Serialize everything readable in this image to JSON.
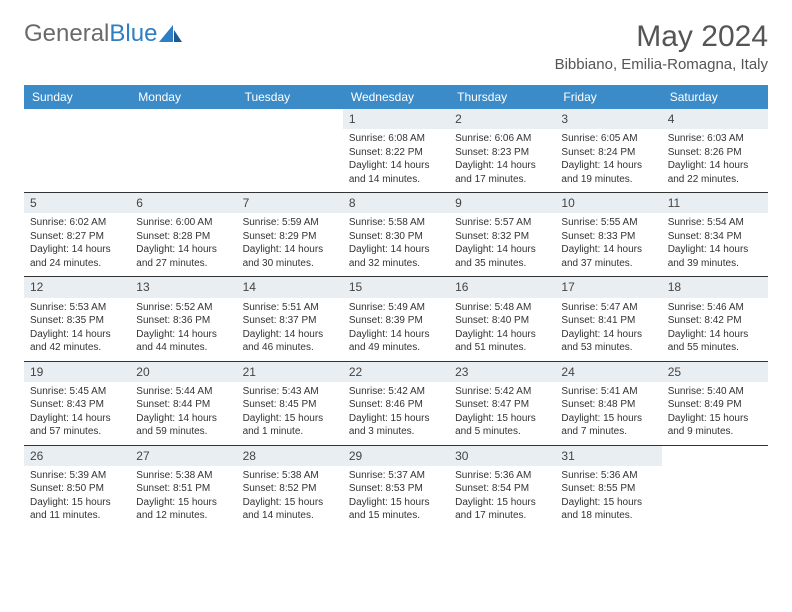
{
  "brand": {
    "general": "General",
    "blue": "Blue"
  },
  "title": "May 2024",
  "location": "Bibbiano, Emilia-Romagna, Italy",
  "colors": {
    "header_bg": "#3b8bc9",
    "daynum_bg": "#e9eef3",
    "text": "#333333",
    "divider": "#333333",
    "brand_gray": "#6a6a6a",
    "brand_blue": "#2d7ec4"
  },
  "calendar": {
    "columns": [
      "Sunday",
      "Monday",
      "Tuesday",
      "Wednesday",
      "Thursday",
      "Friday",
      "Saturday"
    ],
    "weeks": [
      [
        null,
        null,
        null,
        {
          "day": "1",
          "sunrise": "Sunrise: 6:08 AM",
          "sunset": "Sunset: 8:22 PM",
          "daylight": "Daylight: 14 hours and 14 minutes."
        },
        {
          "day": "2",
          "sunrise": "Sunrise: 6:06 AM",
          "sunset": "Sunset: 8:23 PM",
          "daylight": "Daylight: 14 hours and 17 minutes."
        },
        {
          "day": "3",
          "sunrise": "Sunrise: 6:05 AM",
          "sunset": "Sunset: 8:24 PM",
          "daylight": "Daylight: 14 hours and 19 minutes."
        },
        {
          "day": "4",
          "sunrise": "Sunrise: 6:03 AM",
          "sunset": "Sunset: 8:26 PM",
          "daylight": "Daylight: 14 hours and 22 minutes."
        }
      ],
      [
        {
          "day": "5",
          "sunrise": "Sunrise: 6:02 AM",
          "sunset": "Sunset: 8:27 PM",
          "daylight": "Daylight: 14 hours and 24 minutes."
        },
        {
          "day": "6",
          "sunrise": "Sunrise: 6:00 AM",
          "sunset": "Sunset: 8:28 PM",
          "daylight": "Daylight: 14 hours and 27 minutes."
        },
        {
          "day": "7",
          "sunrise": "Sunrise: 5:59 AM",
          "sunset": "Sunset: 8:29 PM",
          "daylight": "Daylight: 14 hours and 30 minutes."
        },
        {
          "day": "8",
          "sunrise": "Sunrise: 5:58 AM",
          "sunset": "Sunset: 8:30 PM",
          "daylight": "Daylight: 14 hours and 32 minutes."
        },
        {
          "day": "9",
          "sunrise": "Sunrise: 5:57 AM",
          "sunset": "Sunset: 8:32 PM",
          "daylight": "Daylight: 14 hours and 35 minutes."
        },
        {
          "day": "10",
          "sunrise": "Sunrise: 5:55 AM",
          "sunset": "Sunset: 8:33 PM",
          "daylight": "Daylight: 14 hours and 37 minutes."
        },
        {
          "day": "11",
          "sunrise": "Sunrise: 5:54 AM",
          "sunset": "Sunset: 8:34 PM",
          "daylight": "Daylight: 14 hours and 39 minutes."
        }
      ],
      [
        {
          "day": "12",
          "sunrise": "Sunrise: 5:53 AM",
          "sunset": "Sunset: 8:35 PM",
          "daylight": "Daylight: 14 hours and 42 minutes."
        },
        {
          "day": "13",
          "sunrise": "Sunrise: 5:52 AM",
          "sunset": "Sunset: 8:36 PM",
          "daylight": "Daylight: 14 hours and 44 minutes."
        },
        {
          "day": "14",
          "sunrise": "Sunrise: 5:51 AM",
          "sunset": "Sunset: 8:37 PM",
          "daylight": "Daylight: 14 hours and 46 minutes."
        },
        {
          "day": "15",
          "sunrise": "Sunrise: 5:49 AM",
          "sunset": "Sunset: 8:39 PM",
          "daylight": "Daylight: 14 hours and 49 minutes."
        },
        {
          "day": "16",
          "sunrise": "Sunrise: 5:48 AM",
          "sunset": "Sunset: 8:40 PM",
          "daylight": "Daylight: 14 hours and 51 minutes."
        },
        {
          "day": "17",
          "sunrise": "Sunrise: 5:47 AM",
          "sunset": "Sunset: 8:41 PM",
          "daylight": "Daylight: 14 hours and 53 minutes."
        },
        {
          "day": "18",
          "sunrise": "Sunrise: 5:46 AM",
          "sunset": "Sunset: 8:42 PM",
          "daylight": "Daylight: 14 hours and 55 minutes."
        }
      ],
      [
        {
          "day": "19",
          "sunrise": "Sunrise: 5:45 AM",
          "sunset": "Sunset: 8:43 PM",
          "daylight": "Daylight: 14 hours and 57 minutes."
        },
        {
          "day": "20",
          "sunrise": "Sunrise: 5:44 AM",
          "sunset": "Sunset: 8:44 PM",
          "daylight": "Daylight: 14 hours and 59 minutes."
        },
        {
          "day": "21",
          "sunrise": "Sunrise: 5:43 AM",
          "sunset": "Sunset: 8:45 PM",
          "daylight": "Daylight: 15 hours and 1 minute."
        },
        {
          "day": "22",
          "sunrise": "Sunrise: 5:42 AM",
          "sunset": "Sunset: 8:46 PM",
          "daylight": "Daylight: 15 hours and 3 minutes."
        },
        {
          "day": "23",
          "sunrise": "Sunrise: 5:42 AM",
          "sunset": "Sunset: 8:47 PM",
          "daylight": "Daylight: 15 hours and 5 minutes."
        },
        {
          "day": "24",
          "sunrise": "Sunrise: 5:41 AM",
          "sunset": "Sunset: 8:48 PM",
          "daylight": "Daylight: 15 hours and 7 minutes."
        },
        {
          "day": "25",
          "sunrise": "Sunrise: 5:40 AM",
          "sunset": "Sunset: 8:49 PM",
          "daylight": "Daylight: 15 hours and 9 minutes."
        }
      ],
      [
        {
          "day": "26",
          "sunrise": "Sunrise: 5:39 AM",
          "sunset": "Sunset: 8:50 PM",
          "daylight": "Daylight: 15 hours and 11 minutes."
        },
        {
          "day": "27",
          "sunrise": "Sunrise: 5:38 AM",
          "sunset": "Sunset: 8:51 PM",
          "daylight": "Daylight: 15 hours and 12 minutes."
        },
        {
          "day": "28",
          "sunrise": "Sunrise: 5:38 AM",
          "sunset": "Sunset: 8:52 PM",
          "daylight": "Daylight: 15 hours and 14 minutes."
        },
        {
          "day": "29",
          "sunrise": "Sunrise: 5:37 AM",
          "sunset": "Sunset: 8:53 PM",
          "daylight": "Daylight: 15 hours and 15 minutes."
        },
        {
          "day": "30",
          "sunrise": "Sunrise: 5:36 AM",
          "sunset": "Sunset: 8:54 PM",
          "daylight": "Daylight: 15 hours and 17 minutes."
        },
        {
          "day": "31",
          "sunrise": "Sunrise: 5:36 AM",
          "sunset": "Sunset: 8:55 PM",
          "daylight": "Daylight: 15 hours and 18 minutes."
        },
        null
      ]
    ]
  }
}
